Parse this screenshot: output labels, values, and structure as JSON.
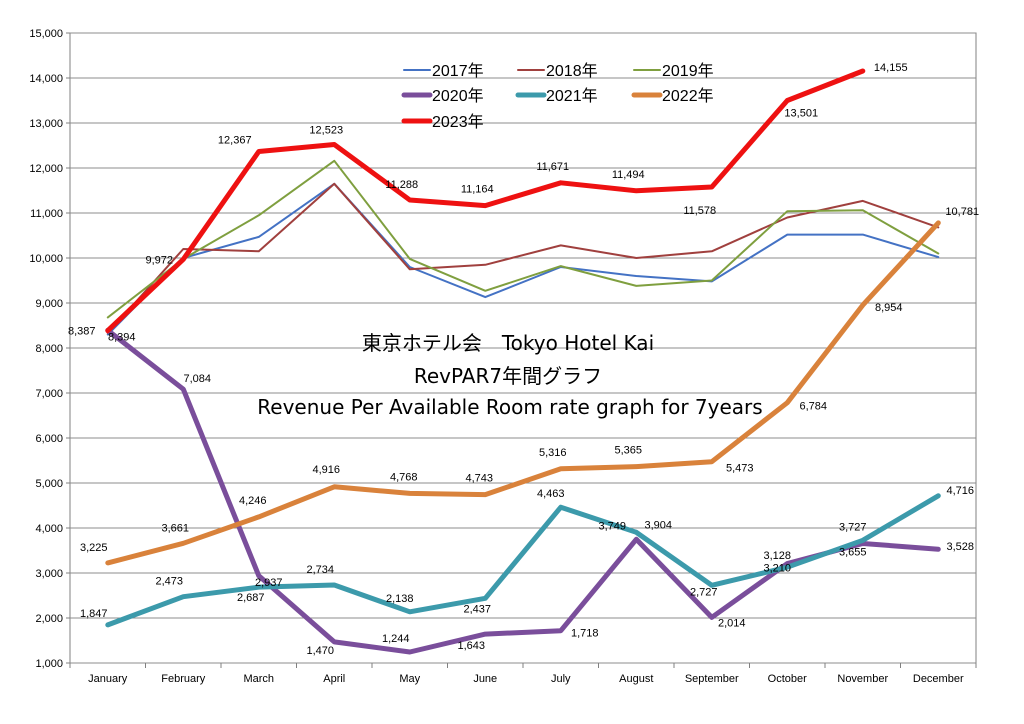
{
  "chart_data": {
    "type": "line",
    "title_lines": [
      "東京ホテル会　Tokyo Hotel Kai",
      "RevPAR7年間グラフ",
      "Revenue Per Available Room rate graph for 7years"
    ],
    "categories": [
      "January",
      "February",
      "March",
      "April",
      "May",
      "June",
      "July",
      "August",
      "September",
      "October",
      "November",
      "December"
    ],
    "ylim": [
      1000,
      15000
    ],
    "yticks": [
      1000,
      2000,
      3000,
      4000,
      5000,
      6000,
      7000,
      8000,
      9000,
      10000,
      11000,
      12000,
      13000,
      14000,
      15000
    ],
    "ytick_labels": [
      "1,000",
      "2,000",
      "3,000",
      "4,000",
      "5,000",
      "6,000",
      "7,000",
      "8,000",
      "9,000",
      "10,000",
      "11,000",
      "12,000",
      "13,000",
      "14,000",
      "15,000"
    ],
    "grid": true,
    "legend_position": "top-center",
    "series": [
      {
        "name": "2017年",
        "color": "#4472C4",
        "width": 2,
        "values": [
          8300,
          10000,
          10470,
          11650,
          9800,
          9130,
          9800,
          9600,
          9480,
          10520,
          10520,
          10020
        ],
        "labels": []
      },
      {
        "name": "2018年",
        "color": "#A0403E",
        "width": 2,
        "values": [
          8330,
          10200,
          10150,
          11650,
          9750,
          9850,
          10280,
          10000,
          10150,
          10900,
          11270,
          10680
        ],
        "labels": []
      },
      {
        "name": "2019年",
        "color": "#7F9F3F",
        "width": 2,
        "values": [
          8680,
          9980,
          10950,
          12160,
          9980,
          9270,
          9820,
          9380,
          9500,
          11040,
          11060,
          10100
        ],
        "labels": []
      },
      {
        "name": "2020年",
        "color": "#7A4E9B",
        "width": 5,
        "values": [
          8394,
          7084,
          2937,
          1470,
          1244,
          1643,
          1718,
          3749,
          2014,
          3210,
          3655,
          3528
        ],
        "labels": [
          "8,394",
          "7,084",
          "2,937",
          "1,470",
          "1,244",
          "1,643",
          "1,718",
          "3,749",
          "2,014",
          "3,210",
          "3,655",
          "3,528"
        ]
      },
      {
        "name": "2021年",
        "color": "#3C9AAB",
        "width": 5,
        "values": [
          1847,
          2473,
          2687,
          2734,
          2138,
          2437,
          4463,
          3904,
          2727,
          3128,
          3727,
          4716
        ],
        "labels": [
          "1,847",
          "2,473",
          "2,687",
          "2,734",
          "2,138",
          "2,437",
          "4,463",
          "3,904",
          "2,727",
          "3,128",
          "3,727",
          "4,716"
        ]
      },
      {
        "name": "2022年",
        "color": "#D9823B",
        "width": 5,
        "values": [
          3225,
          3661,
          4246,
          4916,
          4768,
          4743,
          5316,
          5365,
          5473,
          6784,
          8954,
          10781
        ],
        "labels": [
          "3,225",
          "3,661",
          "4,246",
          "4,916",
          "4,768",
          "4,743",
          "5,316",
          "5,365",
          "5,473",
          "6,784",
          "8,954",
          "10,781"
        ]
      },
      {
        "name": "2023年",
        "color": "#EE1111",
        "width": 5,
        "values": [
          8387,
          9972,
          12367,
          12523,
          11288,
          11164,
          11671,
          11494,
          11578,
          13501,
          14155,
          null
        ],
        "labels": [
          "8,387",
          "9,972",
          "12,367",
          "12,523",
          "11,288",
          "11,164",
          "11,671",
          "11,494",
          "11,578",
          "13,501",
          "14,155",
          ""
        ]
      }
    ]
  }
}
